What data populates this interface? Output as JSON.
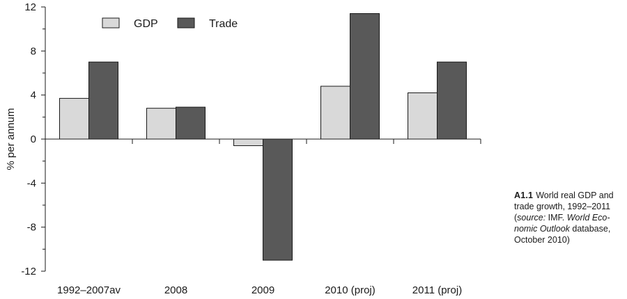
{
  "chart_data": {
    "type": "bar",
    "title": "",
    "xlabel": "",
    "ylabel": "% per annum",
    "categories": [
      "1992–2007av",
      "2008",
      "2009",
      "2010 (proj)",
      "2011 (proj)"
    ],
    "series": [
      {
        "name": "GDP",
        "color": "#d9d9d9",
        "values": [
          3.7,
          2.8,
          -0.6,
          4.8,
          4.2
        ]
      },
      {
        "name": "Trade",
        "color": "#595959",
        "values": [
          7.0,
          2.9,
          -11.0,
          11.4,
          7.0
        ]
      }
    ],
    "ylim": [
      -12,
      12
    ],
    "yticks": [
      -12,
      -8,
      -4,
      0,
      4,
      8,
      12
    ],
    "grid": false,
    "legend_position": "top-left"
  },
  "caption": {
    "number": "A1.1",
    "line1": "World real GDP and",
    "line2": "trade growth, 1992–2011",
    "line3_pre": "(",
    "line3_source_word": "source:",
    "line3_post": " IMF. ",
    "line3_italic": "World Eco-",
    "line4_italic": "nomic Outlook",
    "line4_post": " database,",
    "line5": "October 2010)"
  }
}
